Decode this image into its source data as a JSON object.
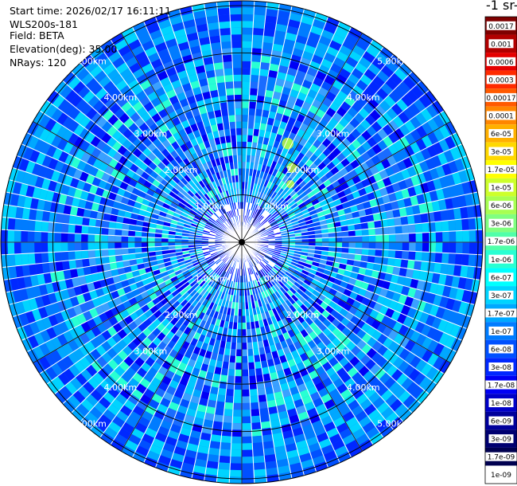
{
  "header": {
    "start_time": "Start time: 2026/02/17 16:11:11",
    "instrument": "WLS200s-181",
    "field": "Field: BETA",
    "elevation": "Elevation(deg): 35.00",
    "nrays": "NRays: 120"
  },
  "colorbar": {
    "title": "-1 sr-",
    "labels": [
      "0.0017",
      "0.001",
      "0.0006",
      "0.0003",
      "0.00017",
      "0.0001",
      "6e-05",
      "3e-05",
      "1.7e-05",
      "1e-05",
      "6e-06",
      "3e-06",
      "1.7e-06",
      "1e-06",
      "6e-07",
      "3e-07",
      "1.7e-07",
      "1e-07",
      "6e-08",
      "3e-08",
      "1.7e-08",
      "1e-08",
      "6e-09",
      "3e-09",
      "1.7e-09",
      "1e-09"
    ],
    "colors": [
      "#7f0000",
      "#b20000",
      "#e50000",
      "#ff2a00",
      "#ff5a00",
      "#ff8600",
      "#ffb000",
      "#ffd800",
      "#ffff00",
      "#cdff2b",
      "#a8ff51",
      "#80ff80",
      "#50ffa9",
      "#28ffd3",
      "#00ffff",
      "#00d4ff",
      "#00a8ff",
      "#007cff",
      "#0050ff",
      "#0028ff",
      "#0000f5",
      "#0000c8",
      "#00009b",
      "#000070",
      "#000050",
      "#ffffff"
    ]
  },
  "chart_data": {
    "type": "heatmap",
    "projection": "polar-ppi",
    "field": "BETA",
    "elevation_deg": 35.0,
    "n_rays": 120,
    "range_rings_km": [
      1.0,
      2.0,
      3.0,
      4.0,
      5.0
    ],
    "ring_labels": [
      "1.00km",
      "2.00km",
      "3.00km",
      "4.00km",
      "5.00km"
    ],
    "max_range_km": 5.1,
    "color_scale": "log",
    "value_range": [
      1e-09,
      0.0017
    ]
  }
}
